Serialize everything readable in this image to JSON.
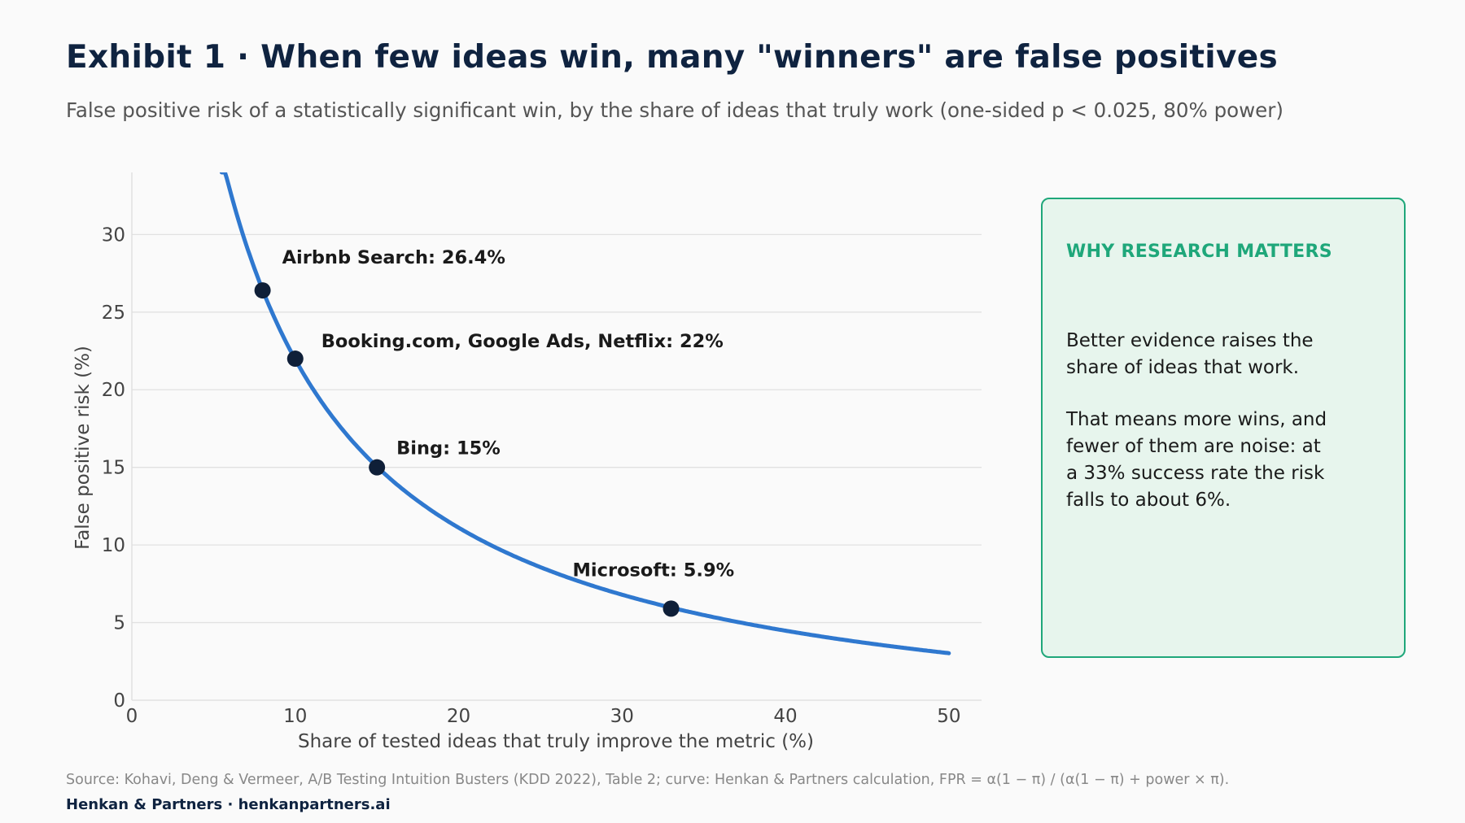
{
  "header": {
    "title": "Exhibit 1 · When few ideas win, many \"winners\" are false positives",
    "subtitle": "False positive risk of a statistically significant win, by the share of ideas that truly work (one-sided p < 0.025, 80% power)"
  },
  "chart_data": {
    "type": "line",
    "xlabel": "Share of tested ideas that truly improve the metric (%)",
    "ylabel": "False positive risk (%)",
    "xlim": [
      0,
      52
    ],
    "ylim": [
      0,
      34
    ],
    "x_ticks": [
      "0",
      "10",
      "20",
      "30",
      "40",
      "50"
    ],
    "y_ticks": [
      "0",
      "5",
      "10",
      "15",
      "20",
      "25",
      "30"
    ],
    "grid": "horizontal",
    "curve": {
      "formula": "FPR = α(1 − π) / (α(1 − π) + power × π)",
      "alpha": 0.025,
      "power": 0.8,
      "x_range": [
        5.5,
        50
      ],
      "color": "#2f78cf"
    },
    "points": [
      {
        "x": 8,
        "y": 26.4,
        "label": "Airbnb Search: 26.4%"
      },
      {
        "x": 10,
        "y": 22,
        "label": "Booking.com, Google Ads, Netflix: 22%"
      },
      {
        "x": 15,
        "y": 15,
        "label": "Bing: 15%"
      },
      {
        "x": 33,
        "y": 5.9,
        "label": "Microsoft: 5.9%"
      }
    ],
    "point_color": "#0f1f38"
  },
  "callout": {
    "heading": "WHY RESEARCH MATTERS",
    "paragraph1": "Better evidence raises the share of ideas that work.",
    "paragraph2": "That means more wins, and fewer of them are noise: at a 33% success rate the risk falls to about 6%."
  },
  "footer": {
    "source": "Source: Kohavi, Deng & Vermeer, A/B Testing Intuition Busters (KDD 2022), Table 2; curve: Henkan & Partners calculation, FPR = α(1 − π) / (α(1 − π) + power × π).",
    "brand": "Henkan & Partners · henkanpartners.ai"
  }
}
